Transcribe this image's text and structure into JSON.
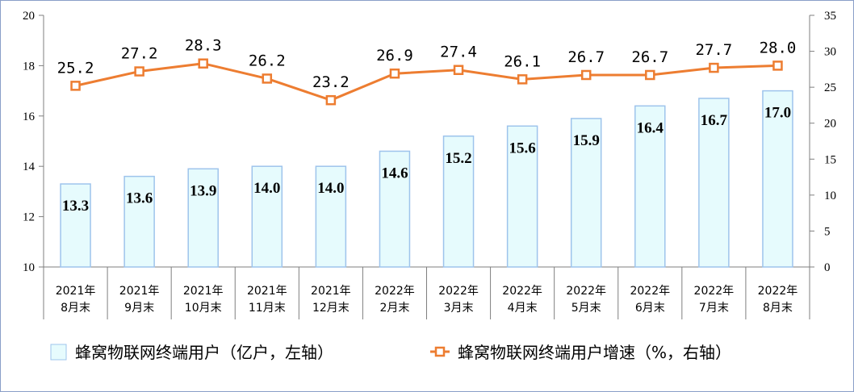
{
  "chart_data": {
    "type": "bar",
    "categories": [
      [
        "2021年",
        "8月末"
      ],
      [
        "2021年",
        "9月末"
      ],
      [
        "2021年",
        "10月末"
      ],
      [
        "2021年",
        "11月末"
      ],
      [
        "2021年",
        "12月末"
      ],
      [
        "2022年",
        "2月末"
      ],
      [
        "2022年",
        "3月末"
      ],
      [
        "2022年",
        "4月末"
      ],
      [
        "2022年",
        "5月末"
      ],
      [
        "2022年",
        "6月末"
      ],
      [
        "2022年",
        "7月末"
      ],
      [
        "2022年",
        "8月末"
      ]
    ],
    "series": [
      {
        "name": "蜂窝物联网终端用户（亿户，左轴）",
        "type": "bar",
        "axis": "left",
        "values": [
          13.3,
          13.6,
          13.9,
          14.0,
          14.0,
          14.6,
          15.2,
          15.6,
          15.9,
          16.4,
          16.7,
          17.0
        ],
        "labels": [
          "13.3",
          "13.6",
          "13.9",
          "14.0",
          "14.0",
          "14.6",
          "15.2",
          "15.6",
          "15.9",
          "16.4",
          "16.7",
          "17.0"
        ]
      },
      {
        "name": "蜂窝物联网终端用户增速（%，右轴）",
        "type": "line",
        "axis": "right",
        "values": [
          25.2,
          27.2,
          28.3,
          26.2,
          23.2,
          26.9,
          27.4,
          26.1,
          26.7,
          26.7,
          27.7,
          28.0
        ],
        "labels": [
          "25.2",
          "27.2",
          "28.3",
          "26.2",
          "23.2",
          "26.9",
          "27.4",
          "26.1",
          "26.7",
          "26.7",
          "27.7",
          "28.0"
        ]
      }
    ],
    "y_left": {
      "min": 10,
      "max": 20,
      "ticks": [
        "10",
        "12",
        "14",
        "16",
        "18",
        "20"
      ]
    },
    "y_right": {
      "min": 0,
      "max": 35,
      "ticks": [
        "0",
        "5",
        "10",
        "15",
        "20",
        "25",
        "30",
        "35"
      ]
    },
    "grid": false,
    "legend_position": "bottom",
    "colors": {
      "bar_fill": "#e6fbfd",
      "bar_stroke": "#9ec4ec",
      "line": "#ed7d31",
      "marker_fill": "#ffffff",
      "axis": "#7f7f7f"
    }
  }
}
